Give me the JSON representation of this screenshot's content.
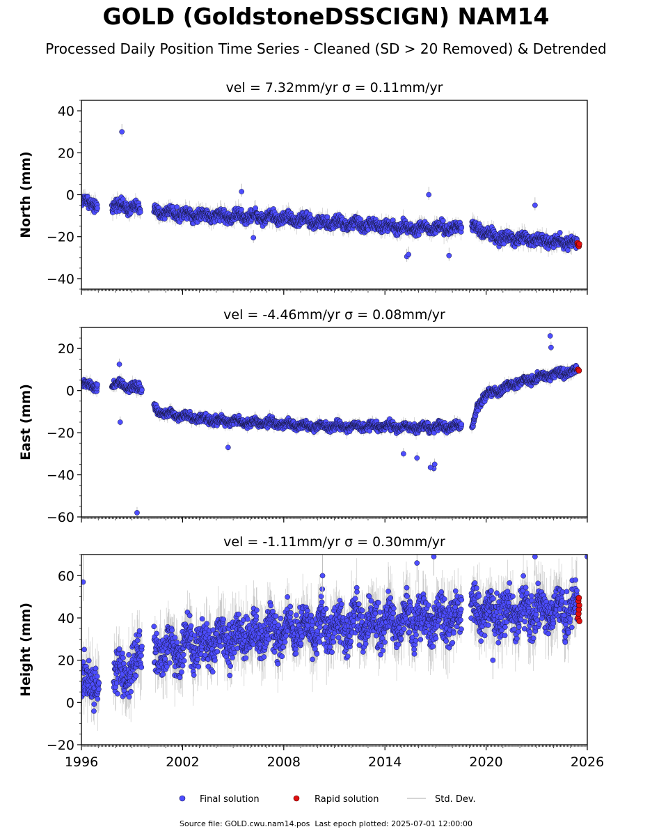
{
  "title": "GOLD (GoldstoneDSSCIGN) NAM14",
  "subtitle": "Processed Daily Position Time Series - Cleaned (SD > 20 Removed) & Detrended",
  "footer": {
    "source_file": "Source file: GOLD.cwu.nam14.pos",
    "last_epoch": "Last epoch plotted: 2025-07-01 12:00:00"
  },
  "legend": {
    "final": "Final solution",
    "rapid": "Rapid solution",
    "std": "Std. Dev."
  },
  "colors": {
    "final": "#4d4dff",
    "rapid": "#e01010",
    "std": "#b0b0b0"
  },
  "chart_data": [
    {
      "type": "scatter",
      "panel_title": "vel = 7.32mm/yr   σ = 0.11mm/yr",
      "vel": "7.32mm/yr",
      "sigma": "0.11mm/yr",
      "ylabel": "North (mm)",
      "ylim": [
        -45,
        45
      ],
      "yticks": [
        -40,
        -20,
        0,
        20,
        40
      ],
      "xlim": [
        1996,
        2026
      ],
      "xticks": [
        1996,
        2002,
        2008,
        2014,
        2020,
        2026
      ],
      "gaps": [
        [
          1996.95,
          1997.8
        ],
        [
          1999.5,
          2000.3
        ],
        [
          2018.55,
          2019.15
        ]
      ],
      "x": [
        1996.0,
        1996.5,
        1996.9,
        1998.0,
        1998.8,
        1999.4,
        2000.5,
        2002.0,
        2004.0,
        2006.0,
        2008.0,
        2010.0,
        2012.0,
        2014.0,
        2016.0,
        2018.4,
        2019.3,
        2020.5,
        2022.0,
        2024.0,
        2025.4
      ],
      "y": [
        -3,
        -4,
        -5,
        -5,
        -6,
        -7,
        -8,
        -9,
        -10,
        -10.5,
        -11,
        -13,
        -14,
        -15,
        -16,
        -16,
        -15,
        -20,
        -21,
        -22,
        -23
      ],
      "noise": 2.5,
      "outliers": [
        [
          1998.4,
          30
        ],
        [
          2005.5,
          1.5
        ],
        [
          2016.6,
          0
        ],
        [
          2022.9,
          -5
        ],
        [
          2015.3,
          -29.5
        ],
        [
          2015.4,
          -28.5
        ],
        [
          2017.8,
          -29
        ],
        [
          2006.2,
          -20.5
        ]
      ],
      "rapid": [
        [
          2025.42,
          -23
        ],
        [
          2025.46,
          -24
        ],
        [
          2025.5,
          -24.5
        ],
        [
          2025.52,
          -23.5
        ]
      ]
    },
    {
      "type": "scatter",
      "panel_title": "vel = -4.46mm/yr   σ = 0.08mm/yr",
      "vel": "-4.46mm/yr",
      "sigma": "0.08mm/yr",
      "ylabel": "East (mm)",
      "ylim": [
        -60,
        30
      ],
      "yticks": [
        -60,
        -40,
        -20,
        0,
        20
      ],
      "xlim": [
        1996,
        2026
      ],
      "xticks": [
        1996,
        2002,
        2008,
        2014,
        2020,
        2026
      ],
      "gaps": [
        [
          1996.95,
          1997.8
        ],
        [
          1999.6,
          2000.3
        ],
        [
          2018.55,
          2019.15
        ]
      ],
      "x": [
        1996.0,
        1996.5,
        1996.9,
        1998.0,
        1998.8,
        1999.5,
        2000.5,
        2002.0,
        2004.0,
        2006.0,
        2008.0,
        2010.0,
        2012.0,
        2014.0,
        2016.0,
        2018.4,
        2019.2,
        2019.5,
        2020.0,
        2021.0,
        2022.0,
        2023.0,
        2024.0,
        2025.4
      ],
      "y": [
        3,
        3,
        2,
        3,
        2,
        1,
        -10,
        -12,
        -14,
        -15,
        -16,
        -17,
        -17,
        -17,
        -17.5,
        -17,
        -18,
        -7,
        -2,
        1,
        4,
        6,
        8,
        9
      ],
      "noise": 1.8,
      "outliers": [
        [
          1999.3,
          -58
        ],
        [
          2023.8,
          26
        ],
        [
          2023.85,
          20.5
        ],
        [
          2016.9,
          -37
        ],
        [
          2016.95,
          -35
        ],
        [
          2016.7,
          -36.5
        ],
        [
          2015.1,
          -30
        ],
        [
          2015.9,
          -32
        ],
        [
          2004.7,
          -27
        ],
        [
          1998.3,
          -15
        ],
        [
          1998.25,
          12.5
        ]
      ],
      "rapid": [
        [
          2025.45,
          10
        ],
        [
          2025.5,
          9.5
        ]
      ]
    },
    {
      "type": "scatter",
      "panel_title": "vel = -1.11mm/yr   σ = 0.30mm/yr",
      "vel": "-1.11mm/yr",
      "sigma": "0.30mm/yr",
      "ylabel": "Height (mm)",
      "ylim": [
        -20,
        70
      ],
      "yticks": [
        -20,
        0,
        20,
        40,
        60
      ],
      "xlim": [
        1996,
        2026
      ],
      "xticks": [
        1996,
        2002,
        2008,
        2014,
        2020,
        2026
      ],
      "gaps": [
        [
          1997.05,
          1997.9
        ],
        [
          1999.6,
          2000.3
        ],
        [
          2018.55,
          2019.1
        ]
      ],
      "x": [
        1996.0,
        1996.5,
        1997.0,
        1998.0,
        1998.8,
        1999.5,
        2000.5,
        2002.0,
        2004.0,
        2006.0,
        2008.0,
        2010.0,
        2012.0,
        2014.0,
        2016.0,
        2018.4,
        2019.2,
        2020.5,
        2022.0,
        2024.0,
        2025.4
      ],
      "y": [
        8,
        10,
        10,
        12,
        15,
        22,
        24,
        26,
        30,
        32,
        34,
        35,
        37,
        38,
        39,
        40,
        43,
        42,
        42,
        43,
        44
      ],
      "noise": 9,
      "outliers": [
        [
          1996.1,
          57
        ],
        [
          2015.9,
          66
        ],
        [
          2016.9,
          69
        ],
        [
          2022.9,
          69
        ],
        [
          2026.0,
          69
        ],
        [
          2020.4,
          20
        ],
        [
          2010.3,
          60
        ]
      ],
      "rapid": [
        [
          2025.45,
          40
        ],
        [
          2025.48,
          42
        ],
        [
          2025.5,
          44
        ],
        [
          2025.52,
          46
        ],
        [
          2025.47,
          48
        ],
        [
          2025.5,
          49.5
        ],
        [
          2025.53,
          38.5
        ]
      ]
    }
  ]
}
